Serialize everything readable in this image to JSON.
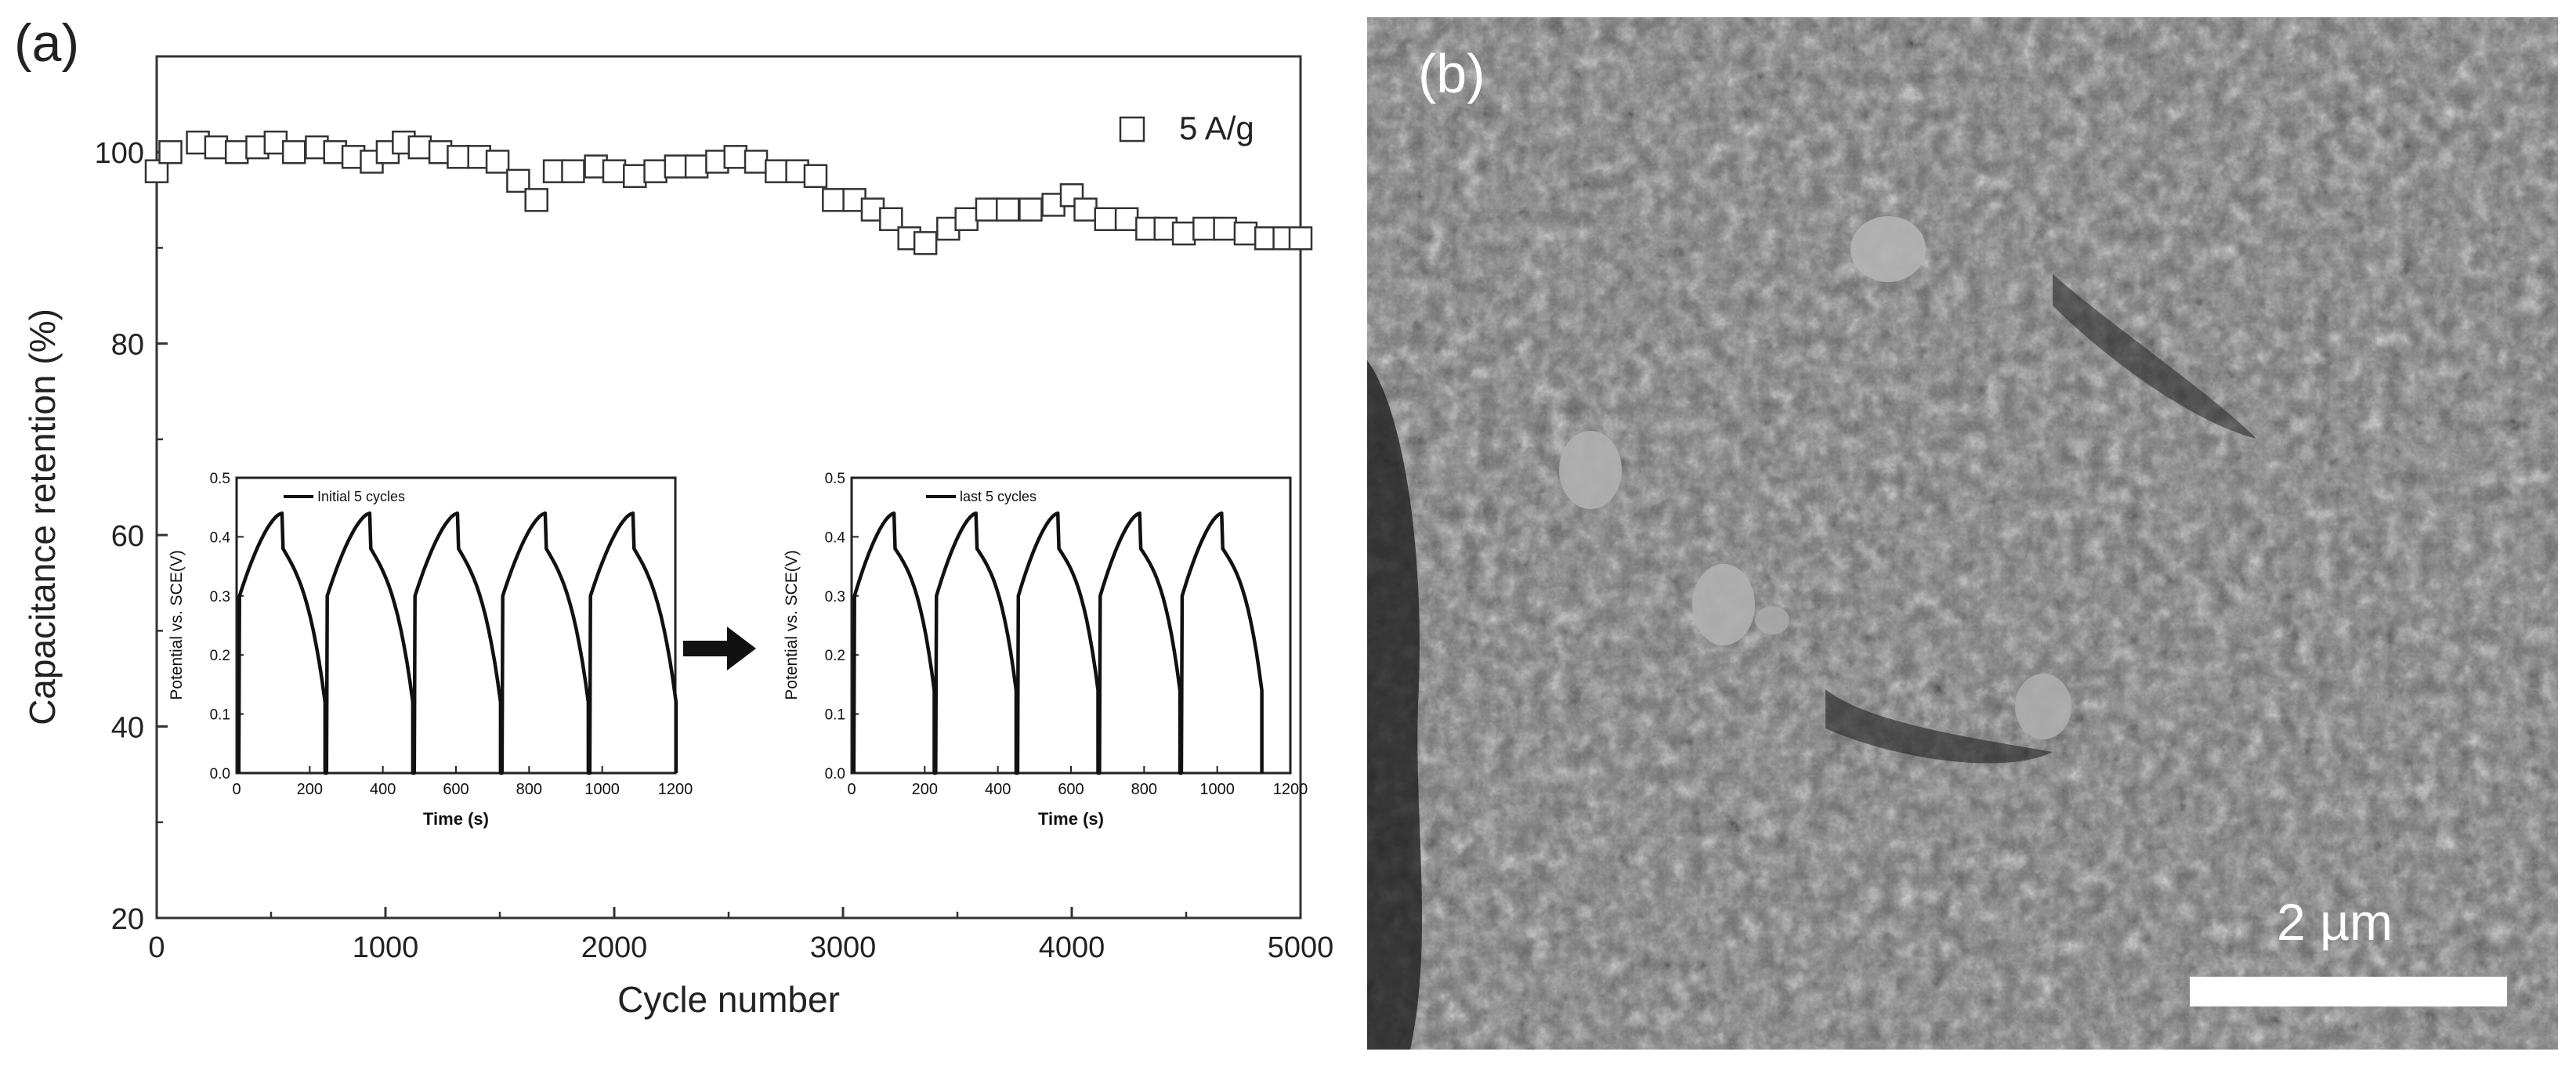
{
  "panel_a": {
    "label": "(a)"
  },
  "panel_b": {
    "label": "(b)",
    "scale_bar_label": "2 µm"
  },
  "inset_arrow": "right-arrow",
  "chart_data": [
    {
      "id": "main",
      "type": "scatter",
      "xlabel": "Cycle number",
      "ylabel": "Capacitance retention (%)",
      "xlim": [
        0,
        5000
      ],
      "ylim": [
        20,
        110
      ],
      "xticks": [
        "0",
        "1000",
        "2000",
        "3000",
        "4000",
        "5000"
      ],
      "yticks": [
        "20",
        "40",
        "60",
        "80",
        "100"
      ],
      "legend": {
        "position": "top-right",
        "marker": "open-square",
        "label": "5 A/g"
      },
      "series": [
        {
          "name": "5 A/g",
          "x": [
            0,
            60,
            180,
            260,
            350,
            440,
            520,
            600,
            700,
            780,
            860,
            940,
            1010,
            1080,
            1150,
            1240,
            1320,
            1410,
            1490,
            1580,
            1660,
            1740,
            1820,
            1920,
            2000,
            2090,
            2180,
            2270,
            2360,
            2450,
            2530,
            2620,
            2710,
            2800,
            2880,
            2960,
            3050,
            3130,
            3210,
            3290,
            3360,
            3460,
            3540,
            3630,
            3720,
            3820,
            3920,
            4000,
            4060,
            4150,
            4240,
            4330,
            4410,
            4490,
            4580,
            4670,
            4760,
            4850,
            4930,
            5000
          ],
          "y": [
            98,
            100,
            101,
            100.5,
            100,
            100.5,
            101,
            100,
            100.5,
            100,
            99.5,
            99,
            100,
            101,
            100.5,
            100,
            99.5,
            99.5,
            99,
            97,
            95,
            98,
            98,
            98.5,
            98,
            97.5,
            98,
            98.5,
            98.5,
            99,
            99.5,
            99,
            98,
            98,
            97.5,
            95,
            95,
            94,
            93,
            91,
            90.5,
            92,
            93,
            94,
            94,
            94,
            94.5,
            95.5,
            94,
            93,
            93,
            92,
            92,
            91.5,
            92,
            92,
            91.5,
            91,
            91,
            91
          ]
        }
      ]
    },
    {
      "id": "inset-left",
      "type": "line",
      "xlabel": "Time (s)",
      "ylabel": "Potential vs. SCE(V)",
      "xlim": [
        0,
        1200
      ],
      "ylim": [
        0,
        0.5
      ],
      "xticks": [
        "0",
        "200",
        "400",
        "600",
        "800",
        "1000",
        "1200"
      ],
      "yticks": [
        "0.0",
        "0.1",
        "0.2",
        "0.3",
        "0.4",
        "0.5"
      ],
      "legend": {
        "position": "top-left",
        "label": "Initial 5 cycles"
      },
      "series": [
        {
          "name": "Initial 5 cycles",
          "cycle_period_s": 240,
          "cycles": 5,
          "charge_time_s": 118,
          "v_min": 0,
          "v_step": 0.3,
          "v_max": 0.44,
          "v_fall": 0.26
        }
      ]
    },
    {
      "id": "inset-right",
      "type": "line",
      "xlabel": "Time (s)",
      "ylabel": "Potential vs. SCE(V)",
      "xlim": [
        0,
        1200
      ],
      "ylim": [
        0,
        0.5
      ],
      "xticks": [
        "0",
        "200",
        "400",
        "600",
        "800",
        "1000",
        "1200"
      ],
      "yticks": [
        "0.0",
        "0.1",
        "0.2",
        "0.3",
        "0.4",
        "0.5"
      ],
      "legend": {
        "position": "top-left",
        "label": "last 5 cycles"
      },
      "series": [
        {
          "name": "last 5 cycles",
          "cycle_period_s": 224,
          "cycles": 5,
          "charge_time_s": 110,
          "v_min": 0,
          "v_step": 0.3,
          "v_max": 0.44,
          "v_fall": 0.28
        }
      ]
    }
  ]
}
